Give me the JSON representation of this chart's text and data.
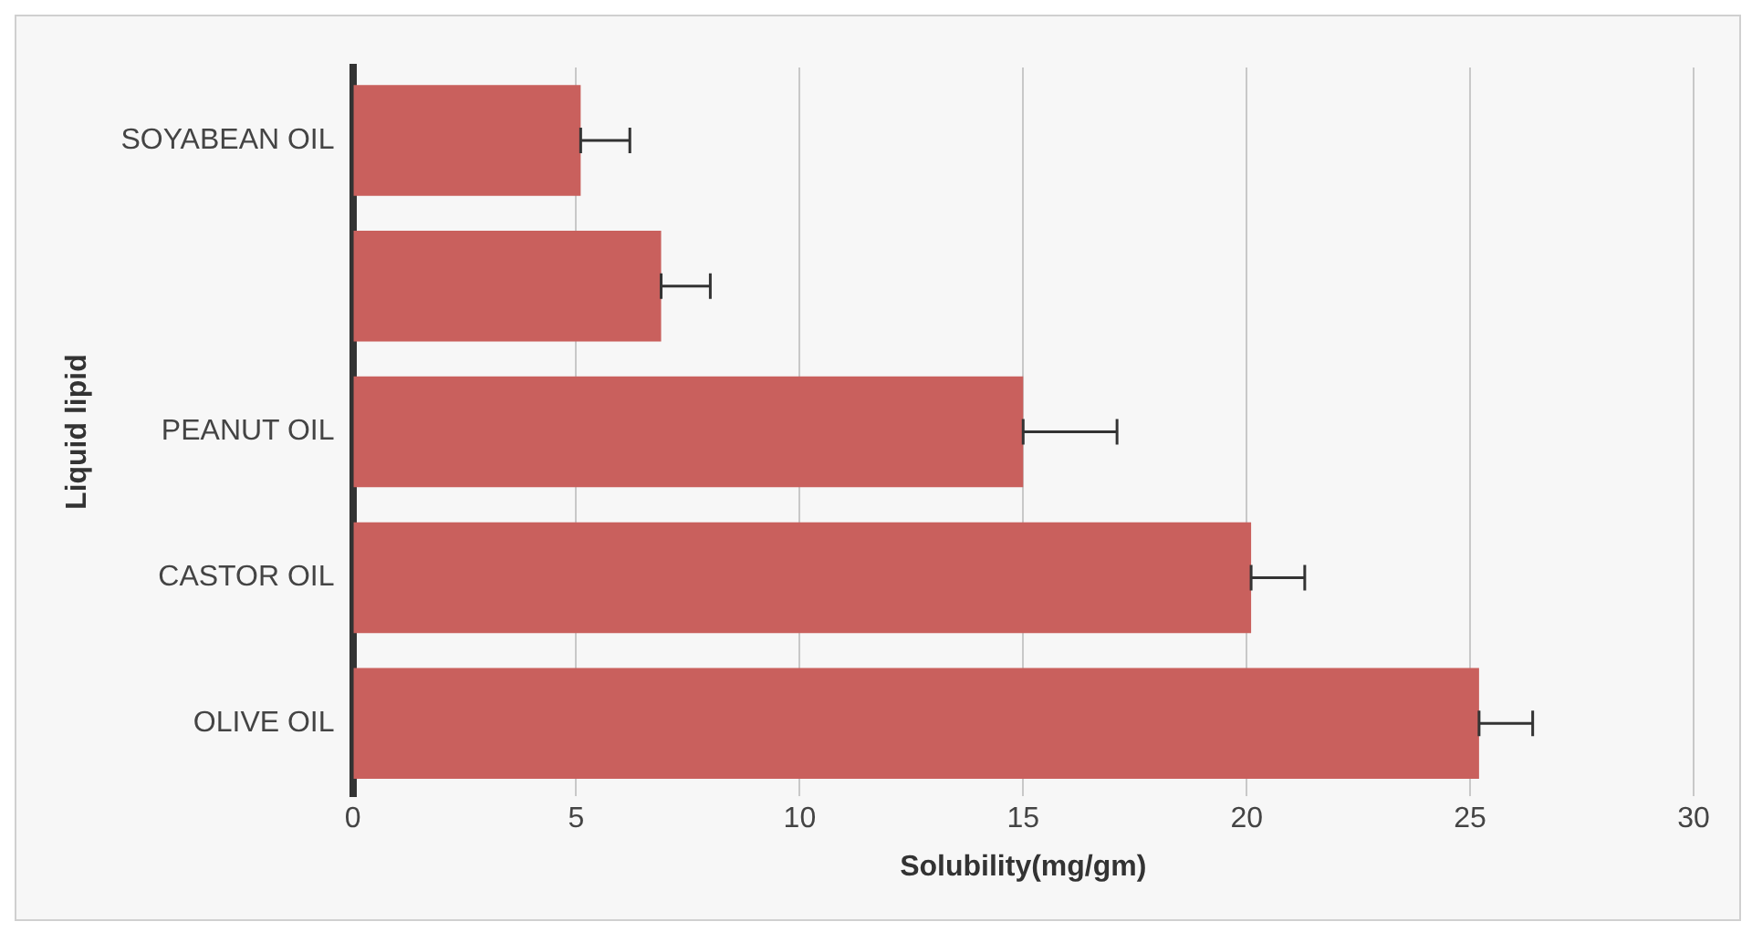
{
  "chart_data": {
    "type": "bar",
    "orientation": "horizontal",
    "xlabel": "Solubility(mg/gm)",
    "ylabel": "Liquid lipid",
    "categories": [
      "SOYABEAN OIL",
      null,
      "PEANUT OIL",
      "CASTOR OIL",
      "OLIVE OIL"
    ],
    "values": [
      5.1,
      6.9,
      15.0,
      20.1,
      25.2
    ],
    "errors": [
      [
        5.1,
        6.2
      ],
      [
        6.9,
        8.0
      ],
      [
        15.0,
        17.1
      ],
      [
        20.1,
        21.3
      ],
      [
        25.2,
        26.4
      ]
    ],
    "color": "#c9605d",
    "xlim": [
      0,
      30
    ],
    "xticks": [
      0,
      5,
      10,
      15,
      20,
      25,
      30
    ],
    "grid": "x",
    "legend": false
  }
}
